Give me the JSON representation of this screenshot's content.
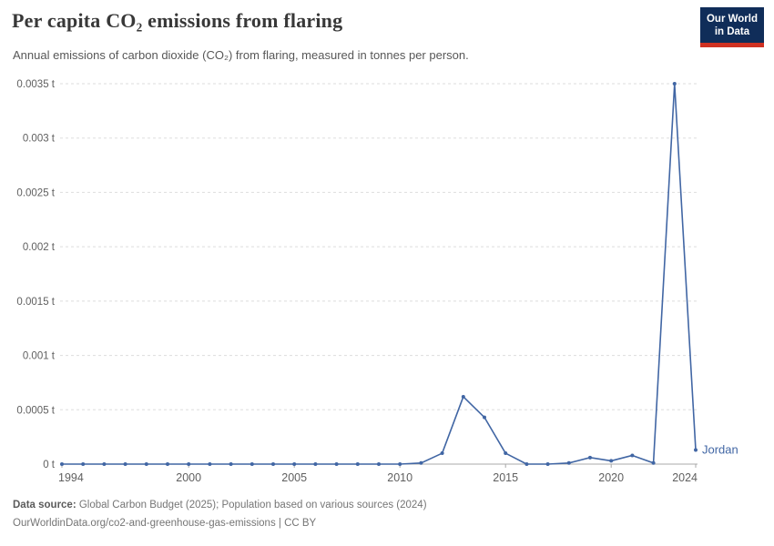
{
  "header": {
    "title": "Per capita CO₂ emissions from flaring",
    "subtitle": "Annual emissions of carbon dioxide (CO₂) from flaring, measured in tonnes per person.",
    "logo": {
      "line1": "Our World",
      "line2": "in Data"
    }
  },
  "chart_data": {
    "type": "line",
    "title": "Per capita CO₂ emissions from flaring",
    "ylabel": "",
    "xlabel": "",
    "unit": "tonnes per person",
    "xlim": [
      1994,
      2024
    ],
    "ylim": [
      0,
      0.0035
    ],
    "x_ticks": [
      1994,
      2000,
      2005,
      2010,
      2015,
      2020,
      2024
    ],
    "y_ticks": [
      0,
      0.0005,
      0.001,
      0.0015,
      0.002,
      0.0025,
      0.003,
      0.0035
    ],
    "y_tick_labels": [
      "0 t",
      "0.0005 t",
      "0.001 t",
      "0.0015 t",
      "0.002 t",
      "0.0025 t",
      "0.003 t",
      "0.0035 t"
    ],
    "grid": "horizontal-dashed",
    "legend_position": "end-of-line-label",
    "series": [
      {
        "name": "Jordan",
        "color": "#4166a4",
        "x": [
          1994,
          1995,
          1996,
          1997,
          1998,
          1999,
          2000,
          2001,
          2002,
          2003,
          2004,
          2005,
          2006,
          2007,
          2008,
          2009,
          2010,
          2011,
          2012,
          2013,
          2014,
          2015,
          2016,
          2017,
          2018,
          2019,
          2020,
          2021,
          2022,
          2023,
          2024
        ],
        "values": [
          0,
          0,
          0,
          0,
          0,
          0,
          0,
          0,
          0,
          0,
          0,
          0,
          0,
          0,
          0,
          0,
          0,
          1e-05,
          0.0001,
          0.00062,
          0.00043,
          0.0001,
          0,
          0,
          1e-05,
          6e-05,
          3e-05,
          8e-05,
          1e-05,
          0.0035,
          0.00013
        ]
      }
    ]
  },
  "footer": {
    "datasource_label": "Data source:",
    "datasource_text": " Global Carbon Budget (2025); Population based on various sources (2024)",
    "url_line": "OurWorldinData.org/co2-and-greenhouse-gas-emissions | CC BY"
  },
  "colors": {
    "line": "#4166a4",
    "logo_bg": "#102d59",
    "logo_bar": "#cf3122",
    "gridline": "#dddddd",
    "axis_line": "#a8a8a8",
    "axis_text": "#5f5f5f"
  }
}
